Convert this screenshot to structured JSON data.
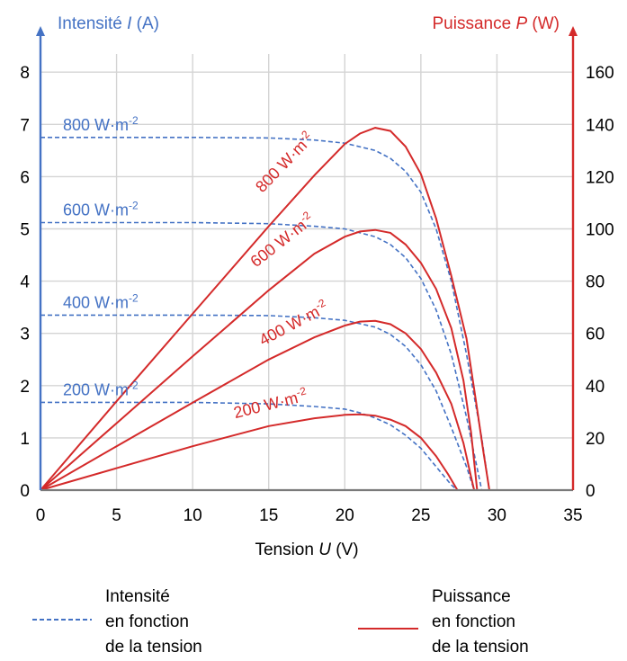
{
  "colors": {
    "intensity": "#4472c4",
    "power": "#d42a2a",
    "grid": "#d4d4d4",
    "axis_x": "#7a7a7a"
  },
  "axis_titles": {
    "left_prefix": "Intensité ",
    "left_var": "I",
    "left_unit": " (A)",
    "right_prefix": "Puissance ",
    "right_var": "P",
    "right_unit": " (W)",
    "bottom_prefix": "Tension ",
    "bottom_var": "U",
    "bottom_unit": " (V)"
  },
  "legend": {
    "intensity": [
      "Intensité",
      "en fonction",
      "de la tension"
    ],
    "power": [
      "Puissance",
      "en fonction",
      "de la tension"
    ]
  },
  "chart_data": {
    "type": "line",
    "x_axis": {
      "label": "Tension U (V)",
      "min": 0,
      "max": 35,
      "ticks": [
        0,
        5,
        10,
        15,
        20,
        25,
        30,
        35
      ]
    },
    "y_left": {
      "label": "Intensité I (A)",
      "min": 0,
      "max": 8.5,
      "ticks": [
        0,
        1,
        2,
        3,
        4,
        5,
        6,
        7,
        8
      ]
    },
    "y_right": {
      "label": "Puissance P (W)",
      "min": 0,
      "max": 170,
      "ticks": [
        0,
        20,
        40,
        60,
        80,
        100,
        120,
        140,
        160
      ]
    },
    "grid": true,
    "intensity_series": [
      {
        "name": "800 W·m-2",
        "label_base": "800 W·m",
        "label_exp": "-2",
        "points": [
          [
            0,
            6.75
          ],
          [
            5,
            6.75
          ],
          [
            10,
            6.75
          ],
          [
            15,
            6.74
          ],
          [
            18,
            6.7
          ],
          [
            20,
            6.64
          ],
          [
            22,
            6.5
          ],
          [
            23,
            6.35
          ],
          [
            24,
            6.1
          ],
          [
            25,
            5.7
          ],
          [
            26,
            5.0
          ],
          [
            27,
            4.0
          ],
          [
            28,
            2.6
          ],
          [
            29,
            1.0
          ],
          [
            29.5,
            0
          ]
        ]
      },
      {
        "name": "600 W·m-2",
        "label_base": "600 W·m",
        "label_exp": "-2",
        "points": [
          [
            0,
            5.12
          ],
          [
            5,
            5.12
          ],
          [
            10,
            5.12
          ],
          [
            15,
            5.1
          ],
          [
            18,
            5.05
          ],
          [
            20,
            5.0
          ],
          [
            22,
            4.85
          ],
          [
            23,
            4.7
          ],
          [
            24,
            4.45
          ],
          [
            25,
            4.05
          ],
          [
            26,
            3.45
          ],
          [
            27,
            2.6
          ],
          [
            28,
            1.4
          ],
          [
            29,
            0
          ]
        ]
      },
      {
        "name": "400 W·m-2",
        "label_base": "400 W·m",
        "label_exp": "-2",
        "points": [
          [
            0,
            3.35
          ],
          [
            5,
            3.35
          ],
          [
            10,
            3.35
          ],
          [
            15,
            3.34
          ],
          [
            18,
            3.3
          ],
          [
            20,
            3.25
          ],
          [
            22,
            3.12
          ],
          [
            23,
            2.98
          ],
          [
            24,
            2.75
          ],
          [
            25,
            2.4
          ],
          [
            26,
            1.9
          ],
          [
            27,
            1.2
          ],
          [
            28,
            0.45
          ],
          [
            28.5,
            0
          ]
        ]
      },
      {
        "name": "200 W·m-2",
        "label_base": "200 W·m",
        "label_exp": "-2",
        "points": [
          [
            0,
            1.68
          ],
          [
            5,
            1.68
          ],
          [
            10,
            1.68
          ],
          [
            15,
            1.65
          ],
          [
            18,
            1.6
          ],
          [
            20,
            1.55
          ],
          [
            21,
            1.48
          ],
          [
            22,
            1.38
          ],
          [
            23,
            1.25
          ],
          [
            24,
            1.05
          ],
          [
            25,
            0.8
          ],
          [
            26,
            0.45
          ],
          [
            27,
            0.1
          ],
          [
            27.4,
            0
          ]
        ]
      }
    ],
    "power_series": [
      {
        "name": "800 W·m-2",
        "label_base": "800 W·m",
        "label_exp": "-2",
        "points": [
          [
            0,
            0
          ],
          [
            5,
            34
          ],
          [
            10,
            67.5
          ],
          [
            15,
            101
          ],
          [
            18,
            120.5
          ],
          [
            20,
            132.5
          ],
          [
            21,
            136.5
          ],
          [
            22,
            138.7
          ],
          [
            23,
            137.5
          ],
          [
            24,
            131.5
          ],
          [
            25,
            121
          ],
          [
            26,
            104
          ],
          [
            27,
            82
          ],
          [
            28,
            58
          ],
          [
            28.6,
            35
          ],
          [
            29.1,
            15
          ],
          [
            29.5,
            0
          ]
        ]
      },
      {
        "name": "600 W·m-2",
        "label_base": "600 W·m",
        "label_exp": "-2",
        "points": [
          [
            0,
            0
          ],
          [
            5,
            25.6
          ],
          [
            10,
            51.2
          ],
          [
            15,
            76.5
          ],
          [
            18,
            90.5
          ],
          [
            20,
            97
          ],
          [
            21,
            99
          ],
          [
            22,
            99.6
          ],
          [
            23,
            98.5
          ],
          [
            24,
            94
          ],
          [
            25,
            87
          ],
          [
            26,
            77
          ],
          [
            27,
            62
          ],
          [
            27.8,
            42
          ],
          [
            28.3,
            22
          ],
          [
            28.7,
            0
          ]
        ]
      },
      {
        "name": "400 W·m-2",
        "label_base": "400 W·m",
        "label_exp": "-2",
        "points": [
          [
            0,
            0
          ],
          [
            5,
            16.8
          ],
          [
            10,
            33.5
          ],
          [
            15,
            50
          ],
          [
            18,
            58.5
          ],
          [
            20,
            63
          ],
          [
            21,
            64.5
          ],
          [
            22,
            64.8
          ],
          [
            23,
            63.5
          ],
          [
            24,
            60
          ],
          [
            25,
            54
          ],
          [
            26,
            45
          ],
          [
            27,
            33
          ],
          [
            27.8,
            18
          ],
          [
            28.3,
            5
          ],
          [
            28.5,
            0
          ]
        ]
      },
      {
        "name": "200 W·m-2",
        "label_base": "200 W·m",
        "label_exp": "-2",
        "points": [
          [
            0,
            0
          ],
          [
            5,
            8.4
          ],
          [
            10,
            16.8
          ],
          [
            15,
            24.5
          ],
          [
            18,
            27.5
          ],
          [
            20,
            28.8
          ],
          [
            21,
            29
          ],
          [
            22,
            28.5
          ],
          [
            23,
            27
          ],
          [
            24,
            24.5
          ],
          [
            25,
            20
          ],
          [
            26,
            13
          ],
          [
            26.8,
            6
          ],
          [
            27.4,
            0
          ]
        ]
      }
    ]
  }
}
